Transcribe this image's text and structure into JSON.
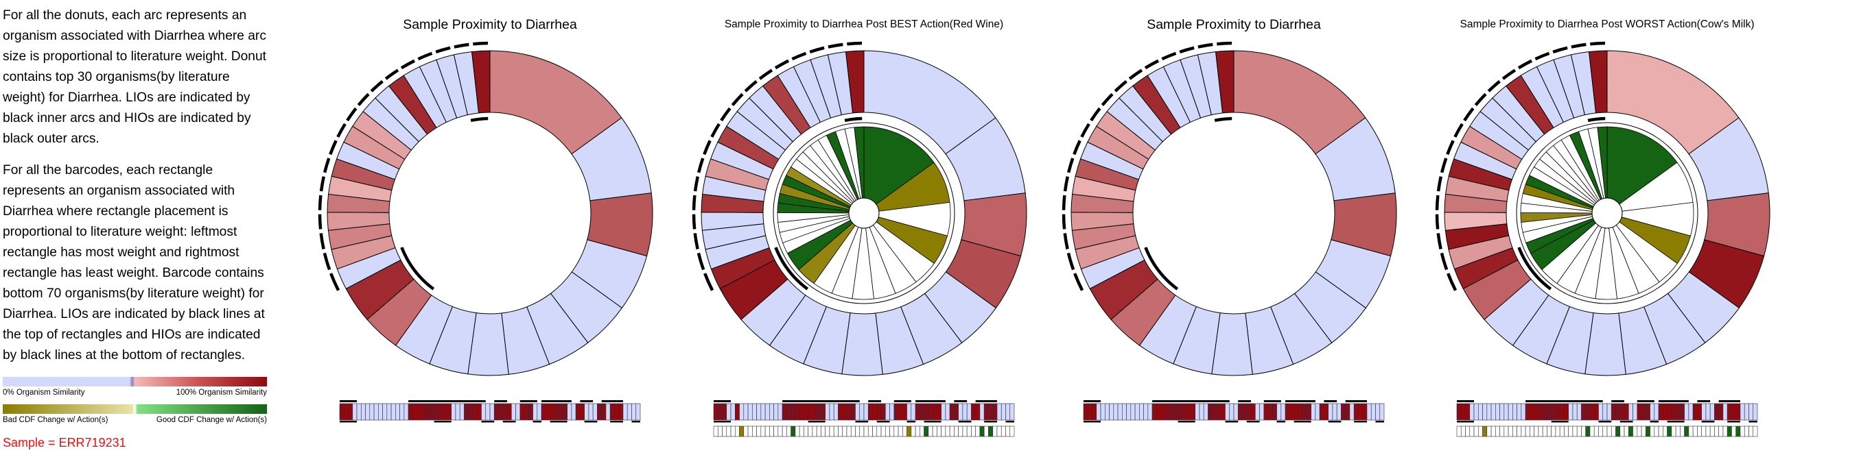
{
  "legend_text": {
    "donut_paragraph": "For all the donuts, each arc represents an organism associated with Diarrhea where arc size is proportional to literature weight. Donut contains top 30 organisms(by literature weight) for Diarrhea. LIOs are indicated by black inner arcs and HIOs are indicated by black outer arcs.",
    "barcode_paragraph": "For all the barcodes, each rectangle represents an organism associated with Diarrhea where rectangle placement is proportional to literature weight: leftmost rectangle has most weight and rightmost rectangle has least weight. Barcode contains bottom 70 organisms(by literature weight) for Diarrhea. LIOs are indicated by black lines at the top of rectangles and HIOs are indicated by black lines at the bottom of rectangles.",
    "similarity_low": "0% Organism Similarity",
    "similarity_high": "100% Organism Similarity",
    "cdf_bad": "Bad CDF Change w/ Action(s)",
    "cdf_good": "Good CDF Change w/ Action(s)",
    "sample": "Sample = ERR719231"
  },
  "colors": {
    "similarity_low": "#d3d9fb",
    "similarity_high": "#8c0a10",
    "cdf_bad": "#8b7d00",
    "cdf_good": "#146414",
    "neutral": "#ffffff"
  },
  "chart_data": [
    {
      "type": "donut",
      "title": "Sample Proximity to Diarrhea",
      "weights": [
        13.5,
        7.2,
        5.6,
        5.1,
        4.3,
        3.9,
        3.7,
        3.6,
        3.5,
        3.4,
        3.4,
        3.3,
        1.9,
        1.8,
        1.7,
        1.6,
        1.6,
        1.6,
        1.6,
        1.6,
        1.6,
        1.6,
        1.6,
        1.6,
        1.6,
        1.6,
        1.6,
        1.6,
        1.6,
        1.6
      ],
      "similarity": [
        0.45,
        0.05,
        0.65,
        0.05,
        0.05,
        0.05,
        0.05,
        0.05,
        0.05,
        0.05,
        0.55,
        0.85,
        0.05,
        0.35,
        0.45,
        0.35,
        0.5,
        0.25,
        0.65,
        0.05,
        0.35,
        0.3,
        0.05,
        0.05,
        0.85,
        0.05,
        0.05,
        0.05,
        0.05,
        0.95
      ],
      "lio": [
        0,
        0,
        0,
        0,
        0,
        0,
        0,
        0,
        0,
        0,
        1,
        1,
        1,
        0,
        0,
        0,
        0,
        0,
        0,
        0,
        0,
        0,
        0,
        0,
        0,
        0,
        0,
        0,
        1,
        1
      ],
      "hio": [
        0,
        0,
        0,
        0,
        0,
        0,
        0,
        0,
        0,
        0,
        0,
        0,
        1,
        1,
        1,
        1,
        1,
        1,
        1,
        1,
        1,
        1,
        1,
        1,
        1,
        1,
        1,
        1,
        1,
        1
      ],
      "barcode_similarity": [
        1,
        1,
        1,
        0,
        0,
        0,
        0,
        0,
        0,
        0,
        0,
        0,
        0,
        0,
        0,
        0,
        1,
        1,
        1,
        1,
        1,
        1,
        1,
        1,
        1,
        1,
        0,
        0,
        0,
        1,
        1,
        1,
        1,
        0,
        0,
        0,
        1,
        1,
        1,
        1,
        0,
        0,
        1,
        1,
        1,
        0,
        0,
        1,
        1,
        1,
        1,
        1,
        1,
        0,
        0,
        1,
        1,
        0,
        0,
        0,
        1,
        1,
        0,
        1,
        1,
        1,
        0,
        0,
        0,
        0
      ],
      "barcode_top": [
        1,
        1,
        1,
        1,
        0,
        0,
        0,
        0,
        0,
        0,
        0,
        0,
        0,
        0,
        0,
        0,
        1,
        1,
        1,
        1,
        1,
        1,
        1,
        1,
        1,
        1,
        1,
        1,
        1,
        1,
        1,
        1,
        1,
        1,
        0,
        0,
        1,
        1,
        1,
        0,
        0,
        0,
        1,
        1,
        1,
        1,
        0,
        1,
        1,
        1,
        1,
        1,
        1,
        1,
        0,
        0,
        1,
        1,
        1,
        0,
        0,
        1,
        1,
        1,
        1,
        1,
        0,
        0,
        0,
        0
      ],
      "barcode_bottom": [
        1,
        1,
        1,
        1,
        0,
        0,
        0,
        0,
        0,
        0,
        0,
        0,
        0,
        0,
        0,
        0,
        0,
        0,
        0,
        0,
        0,
        0,
        1,
        1,
        1,
        1,
        0,
        0,
        0,
        0,
        0,
        0,
        0,
        1,
        1,
        1,
        0,
        0,
        1,
        1,
        1,
        0,
        0,
        0,
        0,
        1,
        1,
        0,
        0,
        1,
        1,
        1,
        1,
        0,
        0,
        0,
        0,
        1,
        1,
        1,
        0,
        0,
        0,
        1,
        1,
        1,
        0,
        0,
        1,
        1
      ]
    },
    {
      "type": "donut",
      "title": "Sample Proximity to Diarrhea Post BEST Action(Red Wine)",
      "weights": [
        13.5,
        7.2,
        5.6,
        5.1,
        4.3,
        3.9,
        3.7,
        3.6,
        3.5,
        3.4,
        3.4,
        3.3,
        1.9,
        1.8,
        1.7,
        1.6,
        1.6,
        1.6,
        1.6,
        1.6,
        1.6,
        1.6,
        1.6,
        1.6,
        1.6,
        1.6,
        1.6,
        1.6,
        1.6,
        1.6
      ],
      "similarity": [
        0.05,
        0.05,
        0.6,
        0.7,
        0.05,
        0.05,
        0.05,
        0.05,
        0.05,
        0.05,
        0.05,
        0.95,
        0.9,
        0.05,
        0.05,
        0.05,
        0.8,
        0.05,
        0.35,
        0.05,
        0.75,
        0.05,
        0.05,
        0.05,
        0.75,
        0.05,
        0.05,
        0.05,
        0.05,
        0.95
      ],
      "lio": [
        0,
        0,
        0,
        0,
        0,
        0,
        0,
        0,
        0,
        0,
        1,
        1,
        1,
        0,
        0,
        0,
        0,
        0,
        0,
        0,
        0,
        0,
        0,
        0,
        0,
        0,
        0,
        0,
        1,
        1
      ],
      "hio": [
        0,
        0,
        0,
        0,
        0,
        0,
        0,
        0,
        0,
        0,
        0,
        0,
        1,
        1,
        1,
        1,
        1,
        1,
        1,
        1,
        1,
        1,
        1,
        1,
        1,
        1,
        1,
        1,
        1,
        1
      ],
      "cdf_change": [
        1,
        -1,
        0,
        -0.8,
        0,
        0,
        0,
        0,
        0,
        0,
        -0.6,
        1,
        0,
        0,
        0,
        0,
        0.8,
        0.8,
        -0.6,
        0.9,
        -0.5,
        0,
        0,
        0,
        0,
        0,
        1,
        0,
        0,
        1
      ],
      "barcode_similarity": [
        1,
        1,
        1,
        0,
        0,
        1,
        0,
        0,
        0,
        0,
        0,
        0,
        0,
        0,
        0,
        0,
        1,
        1,
        1,
        1,
        1,
        1,
        1,
        1,
        1,
        1,
        0,
        0,
        0,
        1,
        1,
        1,
        1,
        0,
        0,
        0,
        1,
        1,
        1,
        1,
        0,
        0,
        1,
        1,
        1,
        0,
        0,
        1,
        1,
        1,
        1,
        1,
        1,
        0,
        0,
        1,
        1,
        0,
        0,
        0,
        1,
        1,
        0,
        1,
        1,
        1,
        0,
        0,
        0,
        0
      ],
      "barcode_top": [
        1,
        1,
        1,
        1,
        0,
        0,
        0,
        0,
        0,
        0,
        0,
        0,
        0,
        0,
        0,
        0,
        1,
        1,
        1,
        1,
        1,
        1,
        1,
        1,
        1,
        1,
        1,
        1,
        1,
        1,
        1,
        1,
        1,
        1,
        0,
        0,
        1,
        1,
        1,
        0,
        0,
        0,
        1,
        1,
        1,
        1,
        0,
        1,
        1,
        1,
        1,
        1,
        1,
        1,
        0,
        0,
        1,
        1,
        1,
        0,
        0,
        1,
        1,
        1,
        1,
        1,
        0,
        0,
        0,
        0
      ],
      "barcode_bottom": [
        1,
        1,
        1,
        1,
        0,
        0,
        0,
        0,
        0,
        0,
        0,
        0,
        0,
        0,
        0,
        0,
        0,
        0,
        0,
        0,
        0,
        0,
        1,
        1,
        1,
        1,
        0,
        0,
        0,
        0,
        0,
        0,
        0,
        1,
        1,
        1,
        0,
        0,
        1,
        1,
        1,
        0,
        0,
        0,
        0,
        1,
        1,
        0,
        0,
        1,
        1,
        1,
        1,
        0,
        0,
        0,
        0,
        1,
        1,
        1,
        0,
        0,
        0,
        1,
        1,
        1,
        0,
        0,
        1,
        1
      ],
      "barcode_cdf": [
        0,
        0,
        0,
        0,
        0,
        0,
        -1,
        0,
        0,
        0,
        0,
        0,
        0,
        0,
        0,
        0,
        0,
        0,
        1,
        0,
        0,
        0,
        0,
        0,
        0,
        0,
        0,
        0,
        0,
        0,
        0,
        0,
        0,
        0,
        0,
        0,
        0,
        0,
        0,
        0,
        0,
        0,
        0,
        0,
        0,
        -1,
        0,
        0,
        0,
        1,
        0,
        0,
        0,
        0,
        0,
        0,
        0,
        0,
        0,
        0,
        0,
        0,
        1,
        0,
        1,
        0,
        0,
        0,
        0,
        0
      ]
    },
    {
      "type": "donut",
      "title": "Sample Proximity to Diarrhea",
      "weights": [
        13.5,
        7.2,
        5.6,
        5.1,
        4.3,
        3.9,
        3.7,
        3.6,
        3.5,
        3.4,
        3.4,
        3.3,
        1.9,
        1.8,
        1.7,
        1.6,
        1.6,
        1.6,
        1.6,
        1.6,
        1.6,
        1.6,
        1.6,
        1.6,
        1.6,
        1.6,
        1.6,
        1.6,
        1.6,
        1.6
      ],
      "similarity": [
        0.45,
        0.05,
        0.65,
        0.05,
        0.05,
        0.05,
        0.05,
        0.05,
        0.05,
        0.05,
        0.55,
        0.85,
        0.05,
        0.35,
        0.45,
        0.35,
        0.5,
        0.25,
        0.65,
        0.05,
        0.35,
        0.3,
        0.05,
        0.05,
        0.85,
        0.05,
        0.05,
        0.05,
        0.05,
        0.95
      ],
      "lio": [
        0,
        0,
        0,
        0,
        0,
        0,
        0,
        0,
        0,
        0,
        1,
        1,
        1,
        0,
        0,
        0,
        0,
        0,
        0,
        0,
        0,
        0,
        0,
        0,
        0,
        0,
        0,
        0,
        1,
        1
      ],
      "hio": [
        0,
        0,
        0,
        0,
        0,
        0,
        0,
        0,
        0,
        0,
        0,
        0,
        1,
        1,
        1,
        1,
        1,
        1,
        1,
        1,
        1,
        1,
        1,
        1,
        1,
        1,
        1,
        1,
        1,
        1
      ],
      "barcode_similarity": [
        1,
        1,
        1,
        0,
        0,
        0,
        0,
        0,
        0,
        0,
        0,
        0,
        0,
        0,
        0,
        0,
        1,
        1,
        1,
        1,
        1,
        1,
        1,
        1,
        1,
        1,
        0,
        0,
        0,
        1,
        1,
        1,
        1,
        0,
        0,
        0,
        1,
        1,
        1,
        1,
        0,
        0,
        1,
        1,
        1,
        0,
        0,
        1,
        1,
        1,
        1,
        1,
        1,
        0,
        0,
        1,
        1,
        0,
        0,
        0,
        1,
        1,
        0,
        1,
        1,
        1,
        0,
        0,
        0,
        0
      ],
      "barcode_top": [
        1,
        1,
        1,
        1,
        0,
        0,
        0,
        0,
        0,
        0,
        0,
        0,
        0,
        0,
        0,
        0,
        1,
        1,
        1,
        1,
        1,
        1,
        1,
        1,
        1,
        1,
        1,
        1,
        1,
        1,
        1,
        1,
        1,
        1,
        0,
        0,
        1,
        1,
        1,
        0,
        0,
        0,
        1,
        1,
        1,
        1,
        0,
        1,
        1,
        1,
        1,
        1,
        1,
        1,
        0,
        0,
        1,
        1,
        1,
        0,
        0,
        1,
        1,
        1,
        1,
        1,
        0,
        0,
        0,
        0
      ],
      "barcode_bottom": [
        1,
        1,
        1,
        1,
        0,
        0,
        0,
        0,
        0,
        0,
        0,
        0,
        0,
        0,
        0,
        0,
        0,
        0,
        0,
        0,
        0,
        0,
        1,
        1,
        1,
        1,
        0,
        0,
        0,
        0,
        0,
        0,
        0,
        1,
        1,
        1,
        0,
        0,
        1,
        1,
        1,
        0,
        0,
        0,
        0,
        1,
        1,
        0,
        0,
        1,
        1,
        1,
        1,
        0,
        0,
        0,
        0,
        1,
        1,
        1,
        0,
        0,
        0,
        1,
        1,
        1,
        0,
        0,
        1,
        1
      ]
    },
    {
      "type": "donut",
      "title": "Sample Proximity to Diarrhea Post WORST Action(Cow's Milk)",
      "weights": [
        13.5,
        7.2,
        5.6,
        5.1,
        4.3,
        3.9,
        3.7,
        3.6,
        3.5,
        3.4,
        3.4,
        3.3,
        1.9,
        1.8,
        1.7,
        1.6,
        1.6,
        1.6,
        1.6,
        1.6,
        1.6,
        1.6,
        1.6,
        1.6,
        1.6,
        1.6,
        1.6,
        1.6,
        1.6,
        1.6
      ],
      "similarity": [
        0.25,
        0.05,
        0.6,
        0.95,
        0.05,
        0.05,
        0.05,
        0.05,
        0.05,
        0.05,
        0.05,
        0.6,
        0.9,
        0.35,
        0.95,
        0.2,
        0.5,
        0.35,
        0.9,
        0.05,
        0.35,
        0.05,
        0.05,
        0.05,
        0.85,
        0.05,
        0.05,
        0.05,
        0.05,
        0.95
      ],
      "lio": [
        0,
        0,
        0,
        0,
        0,
        0,
        0,
        0,
        0,
        0,
        1,
        1,
        1,
        0,
        0,
        0,
        0,
        0,
        0,
        0,
        0,
        0,
        0,
        0,
        0,
        0,
        0,
        0,
        1,
        1
      ],
      "hio": [
        0,
        0,
        0,
        0,
        0,
        0,
        0,
        0,
        0,
        0,
        0,
        0,
        1,
        1,
        1,
        1,
        1,
        1,
        1,
        1,
        1,
        1,
        1,
        1,
        1,
        1,
        1,
        1,
        1,
        1
      ],
      "cdf_change": [
        1,
        0,
        0,
        -1,
        0,
        0,
        0,
        0,
        0,
        0,
        0,
        0.8,
        0.7,
        0,
        0,
        -0.6,
        0,
        0,
        -0.8,
        0.7,
        0,
        0,
        0,
        0,
        0,
        0,
        0.8,
        0,
        0,
        1
      ],
      "barcode_similarity": [
        1,
        1,
        1,
        0,
        0,
        0,
        0,
        0,
        0,
        0,
        0,
        0,
        0,
        0,
        0,
        0,
        1,
        1,
        1,
        1,
        1,
        1,
        1,
        1,
        1,
        1,
        0,
        0,
        0,
        1,
        1,
        1,
        1,
        0,
        0,
        0,
        1,
        1,
        1,
        1,
        0,
        0,
        1,
        1,
        1,
        0,
        0,
        1,
        1,
        1,
        1,
        1,
        1,
        0,
        0,
        1,
        1,
        0,
        0,
        0,
        1,
        1,
        0,
        1,
        1,
        1,
        0,
        0,
        0,
        0
      ],
      "barcode_top": [
        1,
        1,
        1,
        1,
        0,
        0,
        0,
        0,
        0,
        0,
        0,
        0,
        0,
        0,
        0,
        0,
        1,
        1,
        1,
        1,
        1,
        1,
        1,
        1,
        1,
        1,
        1,
        1,
        1,
        1,
        1,
        1,
        1,
        1,
        0,
        0,
        1,
        1,
        1,
        0,
        0,
        0,
        1,
        1,
        1,
        1,
        0,
        1,
        1,
        1,
        1,
        1,
        1,
        1,
        0,
        0,
        1,
        1,
        1,
        0,
        0,
        1,
        1,
        1,
        1,
        1,
        0,
        0,
        0,
        0
      ],
      "barcode_bottom": [
        1,
        1,
        1,
        1,
        0,
        0,
        0,
        0,
        0,
        0,
        0,
        0,
        0,
        0,
        0,
        0,
        0,
        0,
        0,
        0,
        0,
        0,
        1,
        1,
        1,
        1,
        0,
        0,
        0,
        0,
        0,
        0,
        0,
        1,
        1,
        1,
        0,
        0,
        1,
        1,
        1,
        0,
        0,
        0,
        0,
        1,
        1,
        0,
        0,
        1,
        1,
        1,
        1,
        0,
        0,
        0,
        0,
        1,
        1,
        1,
        0,
        0,
        0,
        1,
        1,
        1,
        0,
        0,
        1,
        1
      ],
      "barcode_cdf": [
        0,
        0,
        0,
        0,
        0,
        0,
        -1,
        0,
        0,
        0,
        0,
        0,
        0,
        0,
        0,
        0,
        0,
        0,
        0,
        0,
        0,
        0,
        0,
        0,
        0,
        0,
        0,
        0,
        0,
        0,
        1,
        0,
        0,
        0,
        0,
        0,
        0,
        1,
        0,
        0,
        1,
        0,
        0,
        0,
        1,
        0,
        0,
        0,
        0,
        1,
        0,
        0,
        0,
        1,
        0,
        0,
        0,
        0,
        0,
        0,
        0,
        0,
        0,
        1,
        0,
        1,
        0,
        0,
        0,
        0
      ]
    }
  ]
}
